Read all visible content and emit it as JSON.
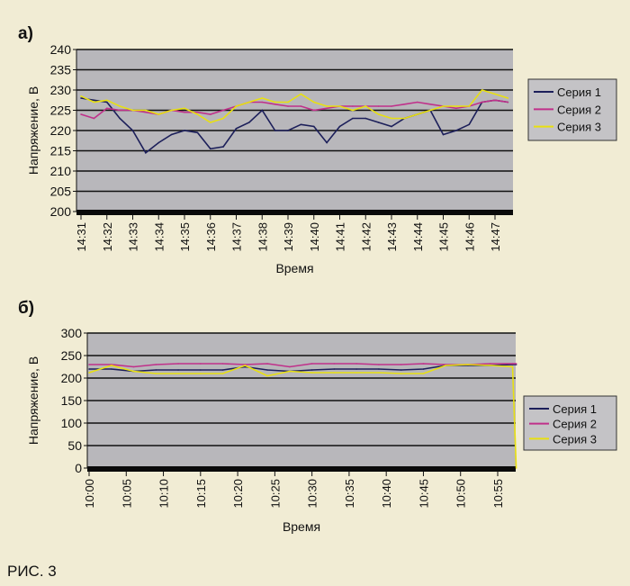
{
  "figure_caption": "РИС. 3",
  "chart_data": [
    {
      "panel_label": "а)",
      "type": "line",
      "title": "",
      "xlabel": "Время",
      "ylabel": "Напряжение, В",
      "ylim": [
        200,
        240
      ],
      "yticks": [
        200,
        205,
        210,
        215,
        220,
        225,
        230,
        235,
        240
      ],
      "xticks": [
        "14:31",
        "14:32",
        "14:33",
        "14:34",
        "14:35",
        "14:36",
        "14:37",
        "14:38",
        "14:39",
        "14:40",
        "14:41",
        "14:42",
        "14:43",
        "14:44",
        "14:45",
        "14:46",
        "14:47"
      ],
      "x_unit": "minutes after 14:31",
      "x": [
        0,
        0.5,
        1,
        1.5,
        2,
        2.5,
        3,
        3.5,
        4,
        4.5,
        5,
        5.5,
        6,
        6.5,
        7,
        7.5,
        8,
        8.5,
        9,
        9.5,
        10,
        10.5,
        11,
        11.5,
        12,
        12.5,
        13,
        13.5,
        14,
        14.5,
        15,
        15.5,
        16,
        16.5
      ],
      "grid": true,
      "legend": "right",
      "series": [
        {
          "name": "Серия 1",
          "color": "#1c1f5a",
          "values": [
            228,
            227.5,
            227,
            223,
            220,
            214.5,
            217,
            219,
            220,
            219.5,
            215.5,
            216,
            220.5,
            222,
            225,
            220,
            220,
            221.5,
            221,
            217,
            221,
            223,
            223,
            222,
            221,
            223,
            224,
            225,
            219,
            220,
            221.5,
            227,
            227.5,
            227
          ]
        },
        {
          "name": "Серия 2",
          "color": "#c0308a",
          "values": [
            224,
            223,
            225.5,
            225,
            225,
            224.5,
            224,
            225,
            224.5,
            224.5,
            224,
            225,
            226,
            227,
            227,
            226.5,
            226,
            226,
            225,
            225.5,
            226,
            226,
            226,
            226,
            226,
            226.5,
            227,
            226.5,
            226,
            225.5,
            226,
            227,
            227.5,
            227
          ]
        },
        {
          "name": "Серия 3",
          "color": "#e8e010",
          "values": [
            228.5,
            227,
            227.5,
            226,
            225,
            225,
            224,
            225,
            225.5,
            224,
            222,
            223,
            226,
            227,
            228,
            227,
            227,
            229,
            227,
            226,
            226,
            225,
            226,
            224,
            223,
            223,
            224,
            225,
            226,
            226,
            226,
            230,
            229,
            228
          ]
        }
      ]
    },
    {
      "panel_label": "б)",
      "type": "line",
      "title": "",
      "xlabel": "Время",
      "ylabel": "Напряжение, В",
      "ylim": [
        0,
        300
      ],
      "yticks": [
        0,
        50,
        100,
        150,
        200,
        250,
        300
      ],
      "xticks": [
        "10:00",
        "10:05",
        "10:10",
        "10:15",
        "10:20",
        "10:25",
        "10:30",
        "10:35",
        "10:40",
        "10:45",
        "10:50",
        "10:55"
      ],
      "x_unit": "minutes after 10:00",
      "x": [
        0,
        3,
        6,
        9,
        12,
        15,
        18,
        21,
        24,
        27,
        30,
        33,
        36,
        39,
        42,
        45,
        48,
        51,
        54,
        57,
        57.5
      ],
      "grid": true,
      "legend": "right",
      "series": [
        {
          "name": "Серия 1",
          "color": "#1c1f5a",
          "values": [
            220,
            220,
            215,
            218,
            218,
            218,
            218,
            225,
            218,
            215,
            218,
            220,
            220,
            220,
            218,
            220,
            228,
            228,
            228,
            230,
            230
          ]
        },
        {
          "name": "Серия 2",
          "color": "#c0308a",
          "values": [
            230,
            230,
            225,
            230,
            232,
            232,
            232,
            230,
            232,
            225,
            232,
            232,
            232,
            230,
            230,
            232,
            230,
            230,
            232,
            232,
            232
          ]
        },
        {
          "name": "Серия 3",
          "color": "#e8e010",
          "values": [
            212,
            228,
            215,
            210,
            210,
            210,
            210,
            228,
            205,
            215,
            212,
            212,
            212,
            212,
            210,
            210,
            228,
            230,
            228,
            225,
            0
          ]
        }
      ]
    }
  ]
}
